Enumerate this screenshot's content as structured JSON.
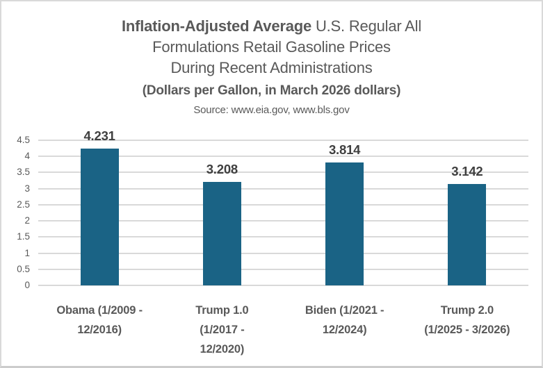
{
  "frame": {
    "background": "#ffffff",
    "border_color": "#d9d9d9"
  },
  "header": {
    "title_line1_bold": "Inflation-Adjusted Average",
    "title_line1_rest": " U.S. Regular All",
    "title_line2": "Formulations Retail Gasoline Prices",
    "title_line3": "During Recent Administrations",
    "subtitle": "(Dollars per Gallon, in March 2026 dollars)",
    "source": "Source: www.eia.gov, www.bls.gov"
  },
  "chart_data": {
    "type": "bar",
    "title": "Inflation-Adjusted Average U.S. Regular All Formulations Retail Gasoline Prices During Recent Administrations",
    "subtitle": "(Dollars per Gallon, in March 2026 dollars)",
    "source": "Source: www.eia.gov, www.bls.gov",
    "categories": [
      "Obama (1/2009 - 12/2016)",
      "Trump 1.0 (1/2017 - 12/2020)",
      "Biden (1/2021 - 12/2024)",
      "Trump 2.0 (1/2025 - 3/2026)"
    ],
    "category_label_lines": [
      [
        "Obama (1/2009 -",
        "12/2016)"
      ],
      [
        "Trump 1.0",
        "(1/2017 -",
        "12/2020)"
      ],
      [
        "Biden (1/2021 -",
        "12/2024)"
      ],
      [
        "Trump 2.0",
        "(1/2025 - 3/2026)"
      ]
    ],
    "values": [
      4.231,
      3.208,
      3.814,
      3.142
    ],
    "data_labels": [
      "4.231",
      "3.208",
      "3.814",
      "3.142"
    ],
    "xlabel": "",
    "ylabel": "",
    "ylim": [
      0,
      4.5
    ],
    "yticks": [
      0,
      0.5,
      1,
      1.5,
      2,
      2.5,
      3,
      3.5,
      4,
      4.5
    ],
    "ytick_labels": [
      "0",
      "0.5",
      "1",
      "1.5",
      "2",
      "2.5",
      "3",
      "3.5",
      "4",
      "4.5"
    ],
    "grid": true,
    "legend": "none",
    "colors": {
      "bar": "#1a6385",
      "gridline": "#d9d9d9",
      "axis_text": "#595959",
      "data_label": "#3f3f3f",
      "title_text": "#595959"
    }
  }
}
